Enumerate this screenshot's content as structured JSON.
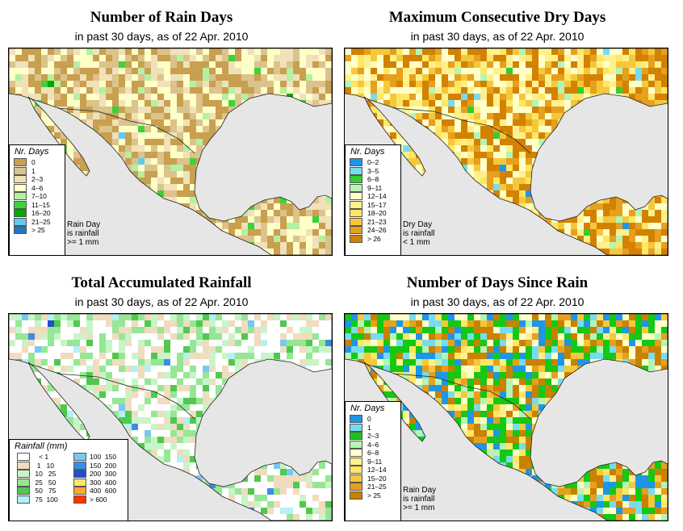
{
  "panels": [
    {
      "title": "Number of Rain Days",
      "subtitle": "in past 30 days, as of  22 Apr. 2010",
      "legend_title": "Nr. Days",
      "legend": [
        {
          "label": "0",
          "color": "#c8a050"
        },
        {
          "label": "1",
          "color": "#dcc38c"
        },
        {
          "label": "2–3",
          "color": "#f0e1b9"
        },
        {
          "label": "4–6",
          "color": "#ffffc8"
        },
        {
          "label": "7–10",
          "color": "#b4f0a0"
        },
        {
          "label": "11–15",
          "color": "#3cd23c"
        },
        {
          "label": "16–20",
          "color": "#00aa00"
        },
        {
          "label": "21–25",
          "color": "#64c8f0"
        },
        {
          "label": "> 25",
          "color": "#1e78c8"
        }
      ],
      "note": [
        "Rain Day",
        "is rainfall",
        ">= 1 mm"
      ]
    },
    {
      "title": "Maximum Consecutive Dry Days",
      "subtitle": "in past 30 days, as of  22 Apr. 2010",
      "legend_title": "Nr. Days",
      "legend": [
        {
          "label": "0–2",
          "color": "#1e96e6"
        },
        {
          "label": "3–5",
          "color": "#78dcf0"
        },
        {
          "label": "6–8",
          "color": "#32cd32"
        },
        {
          "label": "9–11",
          "color": "#b4f5b4"
        },
        {
          "label": "12–14",
          "color": "#ffffc8"
        },
        {
          "label": "15–17",
          "color": "#fff08c"
        },
        {
          "label": "18–20",
          "color": "#ffe664"
        },
        {
          "label": "21–23",
          "color": "#f5c83c"
        },
        {
          "label": "24–26",
          "color": "#e6a01e"
        },
        {
          "label": "> 26",
          "color": "#d28200"
        }
      ],
      "note": [
        "Dry Day",
        "is rainfall",
        "< 1 mm"
      ]
    },
    {
      "title": "Total Accumulated Rainfall",
      "subtitle": "in past 30 days, as of  22 Apr. 2010",
      "legend_title": "Rainfall (mm)",
      "legend_left": [
        {
          "label": "   < 1",
          "color": "#ffffff"
        },
        {
          "label": "  1   10",
          "color": "#f0dcbe"
        },
        {
          "label": " 10   25",
          "color": "#c8f5c8"
        },
        {
          "label": " 25   50",
          "color": "#96e696"
        },
        {
          "label": " 50   75",
          "color": "#50c850"
        },
        {
          "label": " 75  100",
          "color": "#b4f0f5"
        }
      ],
      "legend_right": [
        {
          "label": "100  150",
          "color": "#78c8f0"
        },
        {
          "label": "150  200",
          "color": "#3c8ce6"
        },
        {
          "label": "200  300",
          "color": "#1e50c8"
        },
        {
          "label": "300  400",
          "color": "#ffe664"
        },
        {
          "label": "400  600",
          "color": "#ffaa32"
        },
        {
          "label": "> 600",
          "color": "#ff3200"
        }
      ]
    },
    {
      "title": "Number of Days Since Rain",
      "subtitle": "in past 30 days, as of  22 Apr. 2010",
      "legend_title": "Nr. Days",
      "legend": [
        {
          "label": "0",
          "color": "#1e96e6"
        },
        {
          "label": "1",
          "color": "#78dcf0"
        },
        {
          "label": "2–3",
          "color": "#14c814"
        },
        {
          "label": "4–6",
          "color": "#b4f5b4"
        },
        {
          "label": "6–8",
          "color": "#ffffc8"
        },
        {
          "label": "9–11",
          "color": "#fff08c"
        },
        {
          "label": "12–14",
          "color": "#ffe664"
        },
        {
          "label": "15–20",
          "color": "#f5c83c"
        },
        {
          "label": "21–25",
          "color": "#e6a01e"
        },
        {
          "label": "> 25",
          "color": "#c88200"
        }
      ],
      "note": [
        "Rain Day",
        "is rainfall",
        ">= 1 mm"
      ]
    }
  ],
  "chart_data": [
    {
      "type": "heatmap",
      "title": "Number of Rain Days",
      "subtitle": "in past 30 days, as of  22 Apr. 2010",
      "legend_title": "Nr. Days",
      "classes": [
        "0",
        "1",
        "2–3",
        "4–6",
        "7–10",
        "11–15",
        "16–20",
        "21–25",
        "> 25"
      ]
    },
    {
      "type": "heatmap",
      "title": "Maximum Consecutive Dry Days",
      "subtitle": "in past 30 days, as of  22 Apr. 2010",
      "legend_title": "Nr. Days",
      "classes": [
        "0–2",
        "3–5",
        "6–8",
        "9–11",
        "12–14",
        "15–17",
        "18–20",
        "21–23",
        "24–26",
        "> 26"
      ]
    },
    {
      "type": "heatmap",
      "title": "Total Accumulated Rainfall",
      "subtitle": "in past 30 days, as of  22 Apr. 2010",
      "legend_title": "Rainfall (mm)",
      "classes": [
        "< 1",
        "1 10",
        "10 25",
        "25 50",
        "50 75",
        "75 100",
        "100 150",
        "150 200",
        "200 300",
        "300 400",
        "400 600",
        "> 600"
      ]
    },
    {
      "type": "heatmap",
      "title": "Number of Days Since Rain",
      "subtitle": "in past 30 days, as of  22 Apr. 2010",
      "legend_title": "Nr. Days",
      "classes": [
        "0",
        "1",
        "2–3",
        "4–6",
        "6–8",
        "9–11",
        "12–14",
        "15–20",
        "21–25",
        "> 25"
      ]
    }
  ]
}
